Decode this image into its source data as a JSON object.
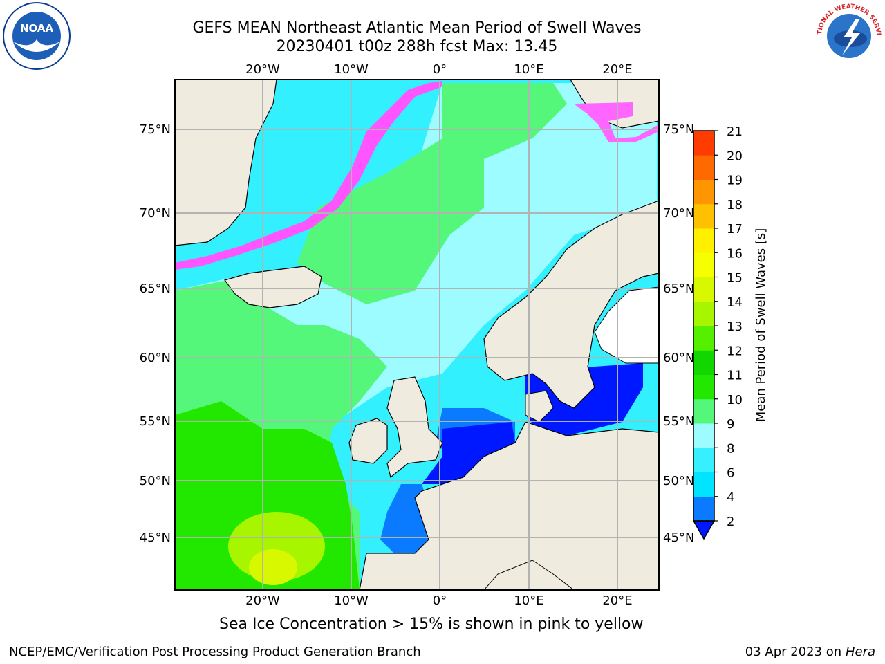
{
  "header": {
    "title_line1": "GEFS MEAN Northeast Atlantic Mean Period of Swell Waves",
    "title_line2": "20230401 t00z 288h fcst   Max: 13.45"
  },
  "logos": {
    "left": "NOAA",
    "right": "NATIONAL WEATHER SERVICE"
  },
  "map": {
    "lon_labels": [
      "20°W",
      "10°W",
      "0°",
      "10°E",
      "20°E"
    ],
    "lat_labels": [
      "75°N",
      "70°N",
      "65°N",
      "60°N",
      "55°N",
      "50°N",
      "45°N"
    ],
    "colors": {
      "land": "#efecdf",
      "open_ocean_cyan": "#33f0ff",
      "light_cyan": "#9cfcff",
      "green": "#22e800",
      "light_green": "#55f77a",
      "blue": "#0018ff",
      "sky_blue": "#0a7bff",
      "ice": "#ff55ff"
    }
  },
  "colorbar": {
    "label": "Mean Period of Swell Waves [s]",
    "ticks": [
      "2",
      "4",
      "6",
      "8",
      "9",
      "10",
      "11",
      "12",
      "13",
      "14",
      "15",
      "16",
      "17",
      "18",
      "19",
      "20",
      "21"
    ],
    "colors": [
      "#0a7bff",
      "#00e4ff",
      "#36f0ff",
      "#9cfcff",
      "#55f77a",
      "#22e800",
      "#11d600",
      "#55f000",
      "#a8f500",
      "#d8f800",
      "#f6ff00",
      "#fff000",
      "#ffc000",
      "#ff9500",
      "#ff6a00",
      "#ff3c00"
    ],
    "extend_color": "#0018ff"
  },
  "subtitle": "Sea Ice Concentration > 15% is shown in pink to yellow",
  "footer": {
    "left": "NCEP/EMC/Verification Post Processing Product Generation Branch",
    "date": "03 Apr 2023 on ",
    "host": "Hera"
  }
}
